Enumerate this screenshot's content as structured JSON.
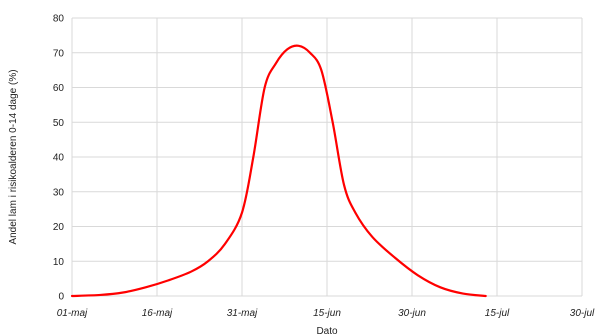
{
  "chart_data": {
    "type": "line",
    "title": "",
    "xlabel": "Dato",
    "ylabel": "Andel lam i risikoalderen 0-14 dage (%)",
    "x_tick_labels": [
      "01-maj",
      "16-maj",
      "31-maj",
      "15-jun",
      "30-jun",
      "15-jul",
      "30-jul"
    ],
    "x_tick_dates": [
      "05-01",
      "05-16",
      "05-31",
      "06-15",
      "06-30",
      "07-15",
      "07-30"
    ],
    "x_range": [
      "05-01",
      "07-30"
    ],
    "y_ticks": [
      0,
      10,
      20,
      30,
      40,
      50,
      60,
      70,
      80
    ],
    "ylim": [
      0,
      80
    ],
    "grid": true,
    "legend": "none",
    "series": [
      {
        "color": "#ff0000",
        "points": [
          {
            "x": "05-01",
            "y": 0
          },
          {
            "x": "05-06",
            "y": 0.3
          },
          {
            "x": "05-10",
            "y": 1.0
          },
          {
            "x": "05-14",
            "y": 2.5
          },
          {
            "x": "05-18",
            "y": 4.5
          },
          {
            "x": "05-22",
            "y": 7.0
          },
          {
            "x": "05-25",
            "y": 10.0
          },
          {
            "x": "05-28",
            "y": 15.0
          },
          {
            "x": "05-31",
            "y": 24.0
          },
          {
            "x": "06-02",
            "y": 40.0
          },
          {
            "x": "06-04",
            "y": 60.0
          },
          {
            "x": "06-06",
            "y": 67.0
          },
          {
            "x": "06-08",
            "y": 71.0
          },
          {
            "x": "06-10",
            "y": 72.0
          },
          {
            "x": "06-12",
            "y": 70.0
          },
          {
            "x": "06-14",
            "y": 65.0
          },
          {
            "x": "06-16",
            "y": 50.0
          },
          {
            "x": "06-18",
            "y": 32.0
          },
          {
            "x": "06-20",
            "y": 24.0
          },
          {
            "x": "06-23",
            "y": 17.0
          },
          {
            "x": "06-27",
            "y": 11.0
          },
          {
            "x": "07-01",
            "y": 6.0
          },
          {
            "x": "07-05",
            "y": 2.5
          },
          {
            "x": "07-09",
            "y": 0.7
          },
          {
            "x": "07-13",
            "y": 0
          }
        ]
      }
    ]
  }
}
